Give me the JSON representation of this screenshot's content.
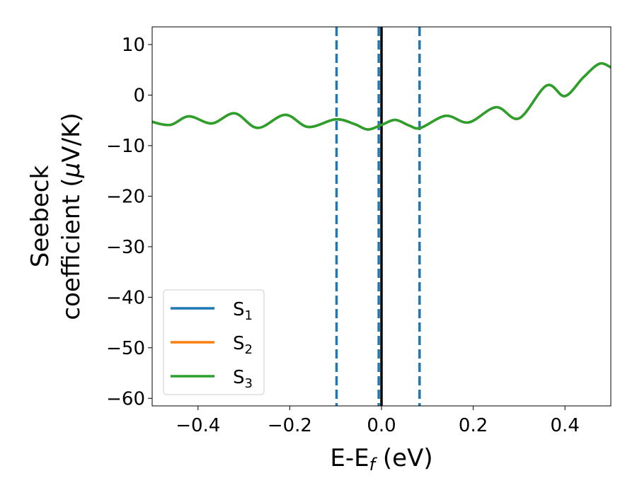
{
  "chart_data": {
    "type": "line",
    "title": "",
    "xlabel": "E-E",
    "xlabel_subscript": "f",
    "xlabel_suffix": " (eV)",
    "ylabel_line1": "Seebeck",
    "ylabel_line2": "coefficient  (",
    "ylabel_mu": "μ",
    "ylabel_line2_suffix": "V/K)",
    "xlim": [
      -0.5,
      0.5
    ],
    "ylim": [
      -61.5,
      13.5
    ],
    "xticks": [
      -0.4,
      -0.2,
      0.0,
      0.2,
      0.4
    ],
    "xtick_labels": [
      "−0.4",
      "−0.2",
      "0.0",
      "0.2",
      "0.4"
    ],
    "yticks": [
      10,
      0,
      -10,
      -20,
      -30,
      -40,
      -50,
      -60
    ],
    "ytick_labels": [
      "10",
      "0",
      "−10",
      "−20",
      "−30",
      "−40",
      "−50",
      "−60"
    ],
    "grid": false,
    "legend_position": "lower-left",
    "vertical_lines": [
      {
        "x": -0.098,
        "style": "dashed",
        "color": "#1f77b4"
      },
      {
        "x": -0.006,
        "style": "dashed",
        "color": "#1f77b4"
      },
      {
        "x": 0.0,
        "style": "solid",
        "color": "#000000"
      },
      {
        "x": 0.083,
        "style": "dashed",
        "color": "#1f77b4"
      }
    ],
    "x": [
      -0.5,
      -0.46,
      -0.42,
      -0.37,
      -0.32,
      -0.27,
      -0.21,
      -0.16,
      -0.1,
      -0.06,
      -0.03,
      0.0,
      0.03,
      0.06,
      0.085,
      0.14,
      0.19,
      0.25,
      0.3,
      0.36,
      0.4,
      0.44,
      0.475,
      0.5
    ],
    "series": [
      {
        "name": "S",
        "subscript": "1",
        "color": "#1f77b4",
        "values": [
          -5.3,
          -5.9,
          -4.2,
          -5.6,
          -3.6,
          -6.5,
          -3.9,
          -6.3,
          -4.8,
          -5.7,
          -6.8,
          -5.9,
          -4.9,
          -6.0,
          -6.5,
          -4.1,
          -5.4,
          -2.4,
          -4.6,
          1.9,
          -0.2,
          3.5,
          6.2,
          5.5
        ]
      },
      {
        "name": "S",
        "subscript": "2",
        "color": "#ff7f0e",
        "values": [
          -5.3,
          -5.9,
          -4.2,
          -5.6,
          -3.6,
          -6.5,
          -3.9,
          -6.3,
          -4.8,
          -5.7,
          -6.8,
          -5.9,
          -4.9,
          -6.0,
          -6.5,
          -4.1,
          -5.4,
          -2.4,
          -4.6,
          1.9,
          -0.2,
          3.5,
          6.2,
          5.5
        ]
      },
      {
        "name": "S",
        "subscript": "3",
        "color": "#2ca02c",
        "values": [
          -5.3,
          -5.9,
          -4.2,
          -5.6,
          -3.6,
          -6.5,
          -3.9,
          -6.3,
          -4.8,
          -5.7,
          -6.8,
          -5.9,
          -4.9,
          -6.0,
          -6.5,
          -4.1,
          -5.4,
          -2.4,
          -4.6,
          1.9,
          -0.2,
          3.5,
          6.2,
          5.5
        ]
      }
    ]
  }
}
